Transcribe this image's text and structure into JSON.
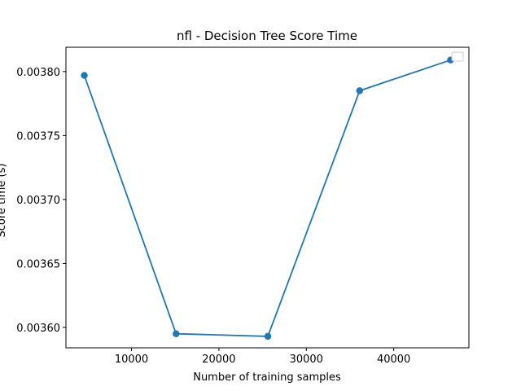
{
  "chart_data": {
    "type": "line",
    "title": "nfl - Decision Tree Score Time",
    "xlabel": "Number of training samples",
    "ylabel": "Score time (s)",
    "x": [
      4600,
      15100,
      25600,
      36100,
      46500
    ],
    "series": [
      {
        "values": [
          0.003797,
          0.003595,
          0.003593,
          0.003785,
          0.003809
        ],
        "color": "#1f77b4",
        "marker": "circle"
      }
    ],
    "xlim": [
      2500,
      48600
    ],
    "ylim": [
      0.003584,
      0.003819
    ],
    "xticks": [
      10000,
      20000,
      30000,
      40000
    ],
    "xtick_labels": [
      "10000",
      "20000",
      "30000",
      "40000"
    ],
    "yticks": [
      0.0036,
      0.00365,
      0.0037,
      0.00375,
      0.0038
    ],
    "ytick_labels": [
      "0.00360",
      "0.00365",
      "0.00370",
      "0.00375",
      "0.00380"
    ],
    "grid": false,
    "legend": {
      "placement": "upper right",
      "entries": []
    }
  }
}
